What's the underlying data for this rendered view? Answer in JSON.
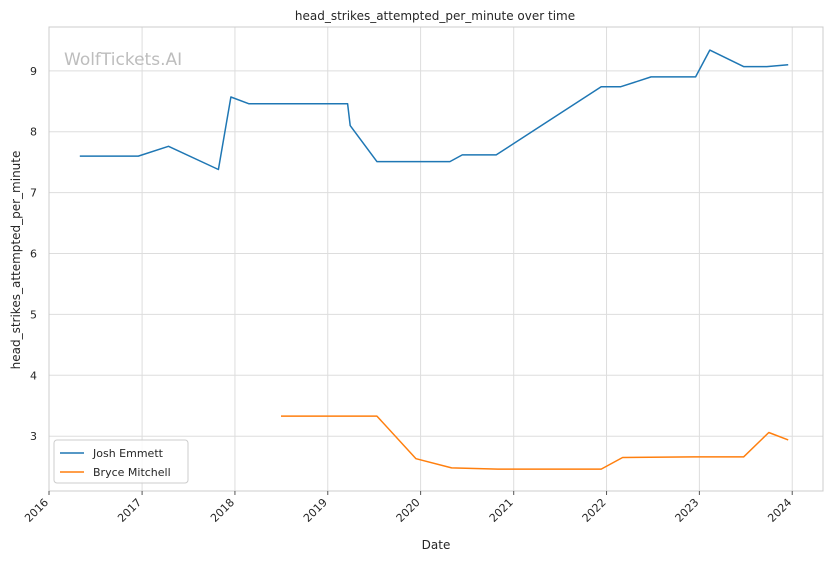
{
  "chart_data": {
    "type": "line",
    "title": "head_strikes_attempted_per_minute over time",
    "xlabel": "Date",
    "ylabel": "head_strikes_attempted_per_minute",
    "watermark": "WolfTickets.AI",
    "x_type": "date",
    "xlim": [
      "2016-01-01",
      "2024-05-01"
    ],
    "ylim": [
      2.1,
      9.72
    ],
    "x_ticks": [
      "2016-01-01",
      "2017-01-01",
      "2018-01-01",
      "2019-01-01",
      "2020-01-01",
      "2021-01-01",
      "2022-01-01",
      "2023-01-01",
      "2024-01-01"
    ],
    "x_tick_labels": [
      "2016",
      "2017",
      "2018",
      "2019",
      "2020",
      "2021",
      "2022",
      "2023",
      "2024"
    ],
    "y_ticks": [
      3,
      4,
      5,
      6,
      7,
      8,
      9
    ],
    "y_tick_labels": [
      "3",
      "4",
      "5",
      "6",
      "7",
      "8",
      "9"
    ],
    "grid": true,
    "legend_position": "bottom-left",
    "series": [
      {
        "name": "Josh Emmett",
        "color": "#1f77b4",
        "x": [
          "2016-05-01",
          "2016-12-17",
          "2017-04-15",
          "2017-10-28",
          "2017-12-16",
          "2018-02-24",
          "2019-03-20",
          "2019-03-30",
          "2019-07-13",
          "2020-04-25",
          "2020-06-13",
          "2020-10-24",
          "2021-12-11",
          "2022-02-26",
          "2022-06-25",
          "2022-12-17",
          "2023-02-11",
          "2023-06-24",
          "2023-09-23",
          "2023-12-16"
        ],
        "values": [
          7.6,
          7.6,
          7.76,
          7.38,
          8.57,
          8.46,
          8.46,
          8.1,
          7.51,
          7.51,
          7.62,
          7.62,
          8.74,
          8.74,
          8.9,
          8.9,
          9.34,
          9.07,
          9.07,
          9.1
        ]
      },
      {
        "name": "Bryce Mitchell",
        "color": "#ff7f0e",
        "x": [
          "2018-07-01",
          "2019-07-13",
          "2019-12-14",
          "2020-05-02",
          "2020-10-31",
          "2021-12-11",
          "2022-03-05",
          "2022-12-10",
          "2023-06-24",
          "2023-10-01",
          "2023-12-16"
        ],
        "values": [
          3.33,
          3.33,
          2.63,
          2.48,
          2.46,
          2.46,
          2.65,
          2.66,
          2.66,
          3.06,
          2.94
        ]
      }
    ]
  }
}
